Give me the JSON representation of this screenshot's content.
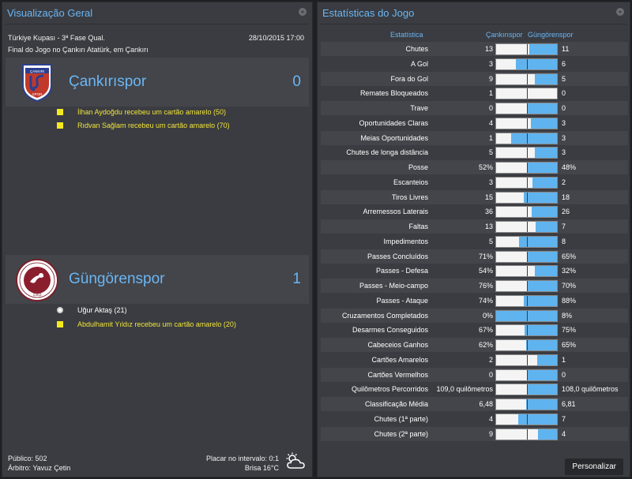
{
  "overview": {
    "title": "Visualização Geral",
    "competition": "Türkiye Kupası - 3ª Fase Qual.",
    "date": "28/10/2015 17:00",
    "description": "Final do Jogo no Çankırı Atatürk, em Çankırı",
    "home": {
      "name": "Çankırıspor",
      "score": "0",
      "crest_text": "ÇANKIRI SPOR",
      "events": [
        {
          "type": "yellow-card",
          "text": "İlhan Aydoğdu recebeu um cartão amarelo (50)"
        },
        {
          "type": "yellow-card",
          "text": "Rıdvan Sağlam recebeu um cartão amarelo (70)"
        }
      ]
    },
    "away": {
      "name": "Güngörenspor",
      "score": "1",
      "crest_text": "GÜNGÖREN BELEDİYESPOR",
      "crest_year": "1983",
      "events": [
        {
          "type": "goal",
          "text": "Uğur Aktaş (21)"
        },
        {
          "type": "yellow-card",
          "text": "Abdulhamit Yıldız recebeu um cartão amarelo (20)"
        }
      ]
    },
    "attendance": "Público: 502",
    "referee": "Árbitro: Yavuz Çetin",
    "halftime": "Placar no intervalo: 0:1",
    "weather": "Brisa 16°C"
  },
  "stats": {
    "title": "Estatísticas do Jogo",
    "col_stat": "Estatística",
    "col_home": "Çankırıspor",
    "col_away": "Güngörenspor",
    "customize_label": "Personalizar",
    "colors": {
      "home_bar": "#f4f4f4",
      "away_bar": "#5fb3ef"
    },
    "rows": [
      {
        "label": "Chutes",
        "home": "13",
        "away": "11",
        "home_share": 0.54
      },
      {
        "label": "A Gol",
        "home": "3",
        "away": "6",
        "home_share": 0.33
      },
      {
        "label": "Fora do Gol",
        "home": "9",
        "away": "5",
        "home_share": 0.64
      },
      {
        "label": "Remates Bloqueados",
        "home": "1",
        "away": "0",
        "home_share": 1.0
      },
      {
        "label": "Trave",
        "home": "0",
        "away": "0",
        "home_share": 0.5
      },
      {
        "label": "Oportunidades Claras",
        "home": "4",
        "away": "3",
        "home_share": 0.57
      },
      {
        "label": "Meias Oportunidades",
        "home": "1",
        "away": "3",
        "home_share": 0.25
      },
      {
        "label": "Chutes de longa distância",
        "home": "5",
        "away": "3",
        "home_share": 0.63
      },
      {
        "label": "Posse",
        "home": "52%",
        "away": "48%",
        "home_share": 0.52
      },
      {
        "label": "Escanteios",
        "home": "3",
        "away": "2",
        "home_share": 0.6
      },
      {
        "label": "Tiros Livres",
        "home": "15",
        "away": "18",
        "home_share": 0.45
      },
      {
        "label": "Arremessos Laterais",
        "home": "36",
        "away": "26",
        "home_share": 0.58
      },
      {
        "label": "Faltas",
        "home": "13",
        "away": "7",
        "home_share": 0.65
      },
      {
        "label": "Impedimentos",
        "home": "5",
        "away": "8",
        "home_share": 0.38
      },
      {
        "label": "Passes Concluídos",
        "home": "71%",
        "away": "65%",
        "home_share": 0.52
      },
      {
        "label": "Passes - Defesa",
        "home": "54%",
        "away": "32%",
        "home_share": 0.63
      },
      {
        "label": "Passes - Meio-campo",
        "home": "76%",
        "away": "70%",
        "home_share": 0.52
      },
      {
        "label": "Passes - Ataque",
        "home": "74%",
        "away": "88%",
        "home_share": 0.46
      },
      {
        "label": "Cruzamentos Completados",
        "home": "0%",
        "away": "8%",
        "home_share": 0.0
      },
      {
        "label": "Desarmes Conseguidos",
        "home": "67%",
        "away": "75%",
        "home_share": 0.47
      },
      {
        "label": "Cabeceios Ganhos",
        "home": "62%",
        "away": "65%",
        "home_share": 0.49
      },
      {
        "label": "Cartões Amarelos",
        "home": "2",
        "away": "1",
        "home_share": 0.67
      },
      {
        "label": "Cartões Vermelhos",
        "home": "0",
        "away": "0",
        "home_share": 0.5
      },
      {
        "label": "Quilômetros Percorridos",
        "home": "109,0 quilômetros",
        "away": "108,0 quilômetros",
        "home_share": 0.5
      },
      {
        "label": "Classificação Média",
        "home": "6,48",
        "away": "6,81",
        "home_share": 0.49
      },
      {
        "label": "Chutes (1ª parte)",
        "home": "4",
        "away": "7",
        "home_share": 0.36
      },
      {
        "label": "Chutes (2ª parte)",
        "home": "9",
        "away": "4",
        "home_share": 0.69
      }
    ]
  }
}
